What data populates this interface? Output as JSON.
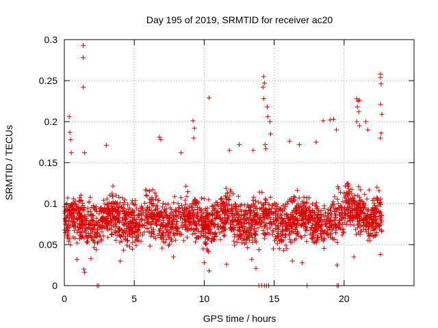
{
  "chart_data": {
    "type": "scatter",
    "title": "Day 195 of 2019, SRMTID for receiver ac20",
    "xlabel": "GPS time / hours",
    "ylabel": "SRMTID / TECUs",
    "xlim": [
      0,
      25
    ],
    "ylim": [
      0,
      0.3
    ],
    "xticks": [
      0,
      5,
      10,
      15,
      20
    ],
    "xtick_labels": [
      "0",
      "5",
      "10",
      "15",
      "20"
    ],
    "yticks": [
      0,
      0.05,
      0.1,
      0.15,
      0.2,
      0.25,
      0.3
    ],
    "ytick_labels": [
      "0",
      "0.05",
      "0.1",
      "0.15",
      "0.2",
      "0.25",
      "0.3"
    ],
    "grid": true,
    "marker": "+",
    "color": "#dd0000",
    "x_data_extent": [
      0,
      22.7
    ],
    "dense_band": {
      "y_low": 0.03,
      "y_high": 0.14,
      "center": 0.08
    },
    "series": [
      {
        "name": "SRMTID",
        "points": [
          [
            1.35,
            0.293
          ],
          [
            1.35,
            0.278
          ],
          [
            1.35,
            0.242
          ],
          [
            0.35,
            0.206
          ],
          [
            0.4,
            0.187
          ],
          [
            0.45,
            0.178
          ],
          [
            0.5,
            0.162
          ],
          [
            1.45,
            0.162
          ],
          [
            3.0,
            0.171
          ],
          [
            9.2,
            0.201
          ],
          [
            9.3,
            0.192
          ],
          [
            9.25,
            0.18
          ],
          [
            10.35,
            0.229
          ],
          [
            6.8,
            0.181
          ],
          [
            6.9,
            0.178
          ],
          [
            14.25,
            0.255
          ],
          [
            14.3,
            0.247
          ],
          [
            14.2,
            0.242
          ],
          [
            14.25,
            0.228
          ],
          [
            14.5,
            0.218
          ],
          [
            14.55,
            0.206
          ],
          [
            14.7,
            0.2
          ],
          [
            14.75,
            0.185
          ],
          [
            14.35,
            0.172
          ],
          [
            14.4,
            0.167
          ],
          [
            16.1,
            0.176
          ],
          [
            16.8,
            0.172
          ],
          [
            18.0,
            0.175
          ],
          [
            18.5,
            0.201
          ],
          [
            19.0,
            0.202
          ],
          [
            19.25,
            0.203
          ],
          [
            19.45,
            0.19
          ],
          [
            20.9,
            0.228
          ],
          [
            21.0,
            0.225
          ],
          [
            21.1,
            0.226
          ],
          [
            20.95,
            0.218
          ],
          [
            21.05,
            0.212
          ],
          [
            20.9,
            0.2
          ],
          [
            21.1,
            0.195
          ],
          [
            21.55,
            0.2
          ],
          [
            21.7,
            0.19
          ],
          [
            22.6,
            0.258
          ],
          [
            22.6,
            0.254
          ],
          [
            22.65,
            0.246
          ],
          [
            22.6,
            0.221
          ],
          [
            22.7,
            0.209
          ],
          [
            22.65,
            0.186
          ],
          [
            22.6,
            0.18
          ],
          [
            12.5,
            0.172
          ],
          [
            11.8,
            0.165
          ],
          [
            8.35,
            0.162
          ],
          [
            13.5,
            0.165
          ],
          [
            1.4,
            0.02
          ],
          [
            1.45,
            0.016
          ],
          [
            0.9,
            0.032
          ],
          [
            1.9,
            0.033
          ],
          [
            4.0,
            0.03
          ],
          [
            7.8,
            0.035
          ],
          [
            10.0,
            0.028
          ],
          [
            10.35,
            0.018
          ],
          [
            11.6,
            0.026
          ],
          [
            13.4,
            0.032
          ],
          [
            13.7,
            0.021
          ],
          [
            16.3,
            0.03
          ],
          [
            17.0,
            0.028
          ],
          [
            19.5,
            0.025
          ],
          [
            22.6,
            0.038
          ],
          [
            20.7,
            0.035
          ],
          [
            2.35,
            0.0
          ],
          [
            2.45,
            0.0
          ],
          [
            13.9,
            0.0
          ],
          [
            14.1,
            0.0
          ],
          [
            14.3,
            0.0
          ],
          [
            14.45,
            0.0
          ],
          [
            14.6,
            0.0
          ],
          [
            17.35,
            0.0
          ],
          [
            19.5,
            0.0
          ],
          [
            19.6,
            0.0
          ]
        ]
      }
    ]
  }
}
